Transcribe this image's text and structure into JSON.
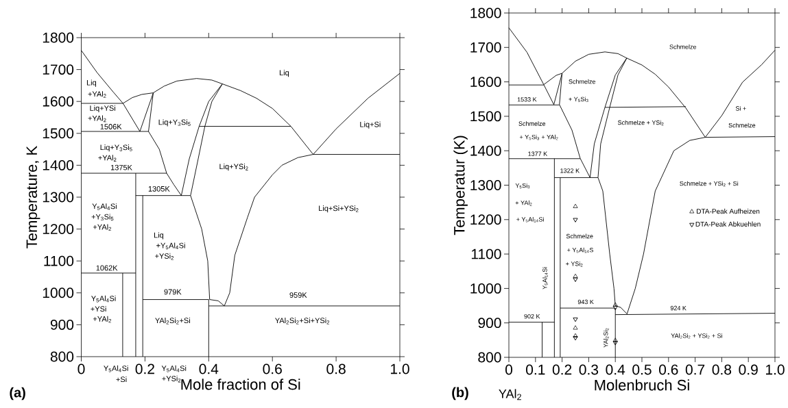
{
  "chart_data": [
    {
      "type": "line",
      "xlabel": "Mole fraction of Si",
      "ylabel": "Temperature, K",
      "xlim": [
        0,
        1
      ],
      "ylim": [
        800,
        1800
      ],
      "marker": "none",
      "line_style": "solid",
      "xticks": [
        0,
        0.2,
        0.4,
        0.6,
        0.8,
        {
          "value": 1,
          "label": "1.0"
        }
      ],
      "yticks": [
        800,
        900,
        1000,
        1100,
        1200,
        1300,
        1400,
        1500,
        1600,
        1700,
        1800
      ],
      "series": [
        {
          "color": "#000000",
          "x": [
            0,
            0.05,
            0.1,
            0.131,
            0.184
          ],
          "values": [
            1760,
            1690,
            1630,
            1594,
            1506
          ]
        },
        {
          "color": "#000000",
          "x": [
            0,
            0.131
          ],
          "values": [
            1594,
            1594
          ]
        },
        {
          "color": "#000000",
          "x": [
            0.131,
            0.16,
            0.19,
            0.226,
            0.26,
            0.3,
            0.362,
            0.41,
            0.443,
            0.5,
            0.55,
            0.6,
            0.658,
            0.728,
            0.8,
            0.9,
            1
          ],
          "values": [
            1594,
            1612,
            1622,
            1627,
            1648,
            1664,
            1672,
            1667,
            1655,
            1634,
            1610,
            1578,
            1522,
            1434,
            1514,
            1610,
            1688
          ]
        },
        {
          "color": "#000000",
          "x": [
            0.184,
            0.226
          ],
          "values": [
            1506,
            1627
          ]
        },
        {
          "color": "#000000",
          "x": [
            0.211,
            0.226
          ],
          "values": [
            1506,
            1627
          ]
        },
        {
          "color": "#000000",
          "x": [
            0,
            0.211
          ],
          "values": [
            1506,
            1506
          ]
        },
        {
          "color": "#000000",
          "x": [
            0.37,
            0.658
          ],
          "values": [
            1522,
            1522
          ]
        },
        {
          "color": "#000000",
          "x": [
            0.443,
            0.4,
            0.37,
            0.339,
            0.314
          ],
          "values": [
            1655,
            1600,
            1522,
            1420,
            1305
          ]
        },
        {
          "color": "#000000",
          "x": [
            0.211,
            0.245,
            0.268,
            0.29,
            0.314
          ],
          "values": [
            1506,
            1450,
            1375,
            1340,
            1305
          ]
        },
        {
          "color": "#000000",
          "x": [
            0,
            0.268
          ],
          "values": [
            1375,
            1375
          ]
        },
        {
          "color": "#000000",
          "x": [
            0.171,
            0.171
          ],
          "values": [
            1375,
            800
          ]
        },
        {
          "color": "#000000",
          "x": [
            0.193,
            0.193
          ],
          "values": [
            1305,
            800
          ]
        },
        {
          "color": "#000000",
          "x": [
            0.171,
            0.343
          ],
          "values": [
            1305,
            1305
          ]
        },
        {
          "color": "#000000",
          "x": [
            0.443,
            0.41,
            0.388,
            0.367,
            0.343,
            0.378,
            0.397,
            0.403,
            0.43,
            0.449,
            0.466,
            0.482,
            0.522,
            0.544,
            0.6,
            0.63,
            0.68,
            0.728,
            1
          ],
          "values": [
            1655,
            1600,
            1522,
            1420,
            1305,
            1200,
            1100,
            979,
            975,
            959,
            1000,
            1118,
            1237,
            1300,
            1370,
            1400,
            1424,
            1434,
            1434
          ]
        },
        {
          "color": "#000000",
          "x": [
            0.193,
            0.4,
            0.4
          ],
          "values": [
            979,
            979,
            800
          ]
        },
        {
          "color": "#000000",
          "x": [
            0,
            0.171
          ],
          "values": [
            1062,
            1062
          ]
        },
        {
          "color": "#000000",
          "x": [
            0.13,
            0.13
          ],
          "values": [
            1062,
            800
          ]
        },
        {
          "color": "#000000",
          "x": [
            0.4,
            1
          ],
          "values": [
            959,
            959
          ]
        }
      ],
      "annotations": [
        "(a)",
        "Liq",
        "Liq",
        "+YAl$_{2}$",
        "Liq+YSi",
        "+YAl$_{2}$",
        "1506K",
        "Liq+Y$_{3}$Si$_{5}$",
        "Liq+Si",
        "Liq+Y$_{3}$Si$_{5}$",
        "+YAl$_{2}$",
        "1375K",
        "Liq+YSi$_{2}$",
        "1305K",
        "Y$_{5}$Al$_{4}$Si",
        "+Y$_{3}$Si$_{5}$",
        "+YAl$_{2}$",
        "Liq+Si+YSi$_{2}$",
        "Liq",
        "+Y$_{5}$Al$_{4}$Si",
        "+YSi$_{2}$",
        "1062K",
        "979K",
        "959K",
        "Y$_{5}$Al$_{4}$Si",
        "+YSi",
        "+YAl$_{2}$",
        "YAl$_{2}$Si$_{2}$+Si",
        "YAl$_{2}$Si$_{2}$+Si+YSi$_{2}$",
        "Y$_{5}$Al$_{4}$Si",
        "+Si",
        "Y$_{5}$Al$_{4}$Si",
        "+YSi$_{2}$"
      ]
    },
    {
      "type": "line",
      "xlabel": "Molenbruch Si",
      "ylabel": "Temperatur (K)",
      "xlim": [
        0,
        1
      ],
      "ylim": [
        800,
        1800
      ],
      "marker": "none",
      "line_style": "solid",
      "legend": "right",
      "xticks": [
        0,
        0.1,
        0.2,
        0.3,
        0.4,
        0.5,
        0.6,
        0.7,
        0.8,
        0.9,
        {
          "value": 1,
          "label": "1.0"
        }
      ],
      "yticks": [
        800,
        900,
        1000,
        1100,
        1200,
        1300,
        1400,
        1500,
        1600,
        1700,
        1800
      ],
      "series": [
        {
          "color": "#000000",
          "x": [
            0,
            0.068,
            0.131,
            0.169
          ],
          "values": [
            1757,
            1686,
            1592,
            1534
          ]
        },
        {
          "color": "#000000",
          "x": [
            0,
            0.131
          ],
          "values": [
            1591,
            1591
          ]
        },
        {
          "color": "#000000",
          "x": [
            0.131,
            0.178,
            0.2,
            0.25,
            0.3,
            0.361,
            0.41,
            0.443,
            0.5,
            0.55,
            0.6,
            0.665,
            0.738,
            0.8,
            0.878,
            0.95,
            1
          ],
          "values": [
            1592,
            1619,
            1625,
            1660,
            1680,
            1687,
            1682,
            1669,
            1649,
            1622,
            1585,
            1524,
            1439,
            1502,
            1599,
            1650,
            1692
          ]
        },
        {
          "color": "#000000",
          "x": [
            0.169,
            0.2
          ],
          "values": [
            1534,
            1625
          ]
        },
        {
          "color": "#000000",
          "x": [
            0.19,
            0.2
          ],
          "values": [
            1534,
            1625
          ]
        },
        {
          "color": "#000000",
          "x": [
            0,
            0.19
          ],
          "values": [
            1533,
            1533
          ]
        },
        {
          "color": "#000000",
          "x": [
            0.361,
            0.665
          ],
          "values": [
            1526,
            1528
          ]
        },
        {
          "color": "#000000",
          "x": [
            0.443,
            0.4,
            0.361,
            0.321,
            0.305
          ],
          "values": [
            1669,
            1620,
            1526,
            1420,
            1322
          ]
        },
        {
          "color": "#000000",
          "x": [
            0.19,
            0.237,
            0.268,
            0.305
          ],
          "values": [
            1534,
            1460,
            1378,
            1322
          ]
        },
        {
          "color": "#000000",
          "x": [
            0,
            0.268
          ],
          "values": [
            1377,
            1377
          ]
        },
        {
          "color": "#000000",
          "x": [
            0.171,
            0.171
          ],
          "values": [
            1377,
            800
          ]
        },
        {
          "color": "#000000",
          "x": [
            0.193,
            0.193
          ],
          "values": [
            1322,
            800
          ]
        },
        {
          "color": "#000000",
          "x": [
            0.171,
            0.335
          ],
          "values": [
            1322,
            1322
          ]
        },
        {
          "color": "#000000",
          "x": [
            0.443,
            0.41,
            0.379,
            0.345,
            0.335,
            0.353,
            0.379,
            0.395,
            0.4,
            0.42,
            0.444,
            0.475,
            0.506,
            0.55,
            0.62,
            0.68,
            0.738,
            1
          ],
          "values": [
            1669,
            1620,
            1526,
            1420,
            1322,
            1283,
            1100,
            1000,
            950,
            945,
            926,
            1000,
            1100,
            1283,
            1400,
            1430,
            1439,
            1441
          ]
        },
        {
          "color": "#000000",
          "x": [
            0.193,
            0.4,
            0.4
          ],
          "values": [
            943,
            943,
            800
          ]
        },
        {
          "color": "#000000",
          "x": [
            0.4,
            1
          ],
          "values": [
            924,
            928
          ]
        },
        {
          "color": "#000000",
          "x": [
            0,
            0.171
          ],
          "values": [
            902,
            902
          ]
        },
        {
          "color": "#000000",
          "x": [
            0.125,
            0.125
          ],
          "values": [
            902,
            800
          ]
        },
        {
          "type": "scatter",
          "marker": "triangle",
          "name": "DTA-Peak Aufheizen",
          "color": "#000000",
          "x": [
            0.25,
            0.25,
            0.25,
            0.25,
            0.4,
            0.4
          ],
          "values": [
            1238,
            885,
            1035,
            862,
            952,
            849
          ]
        },
        {
          "type": "scatter",
          "marker": "triangle down",
          "name": "DTA-Peak Abkuehlen",
          "color": "#000000",
          "x": [
            0.25,
            0.25,
            0.25,
            0.25,
            0.4,
            0.4
          ],
          "values": [
            1200,
            911,
            1027,
            857,
            945,
            843
          ]
        }
      ],
      "annotations": [
        "(b)",
        "Schmelze",
        "Schmelze",
        "+ Y$_{5}$Si$_{3}$",
        "1533 K",
        "Schmelze",
        "+ Y$_{5}$Si$_{3}$ + YAl$_{2}$",
        "1377 K",
        "Schmelze + YSi$_{2}$",
        "Si +",
        "Schmelze",
        "1322 K",
        "Schmelze + YSi$_{2}$ + Si",
        "Y$_{5}$Si$_{3}$",
        "+ YAl$_{2}$",
        "+ Y$_{5}$Al$_{14}$Si",
        "Schmelze",
        "+ Y$_{5}$Al$_{14}$S",
        "+ YSi$_{2}$",
        "Y$_{5}$Al$_{14}$Si",
        "943 K",
        "902 K",
        "924 K",
        "YAl$_{2}$Si$_{2}$",
        "YAl$_{2}$Si$_{2}$ + YSi$_{2}$ + Si",
        "YAl$_{2}$"
      ]
    }
  ]
}
